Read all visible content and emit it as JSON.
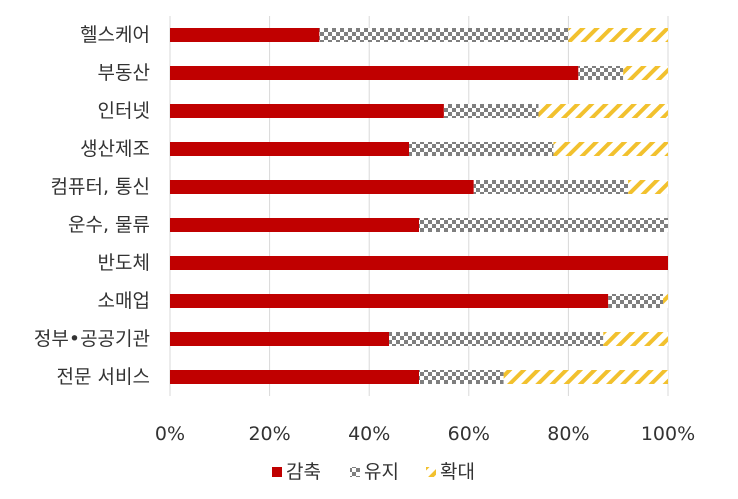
{
  "chart_data": {
    "type": "bar",
    "orientation": "horizontal",
    "stacked": true,
    "categories": [
      "헬스케어",
      "부동산",
      "인터넷",
      "생산제조",
      "컴퓨터, 통신",
      "운수, 물류",
      "반도체",
      "소매업",
      "정부•공공기관",
      "전문 서비스"
    ],
    "series": [
      {
        "name": "감축",
        "values": [
          30,
          82,
          55,
          48,
          61,
          50,
          100,
          88,
          44,
          50
        ],
        "pattern": "solid",
        "color": "#c00000"
      },
      {
        "name": "유지",
        "values": [
          50,
          9,
          19,
          29,
          31,
          50,
          0,
          11,
          43,
          17
        ],
        "pattern": "checker",
        "color": "#808080"
      },
      {
        "name": "확대",
        "values": [
          20,
          9,
          26,
          23,
          8,
          0,
          0,
          1,
          13,
          33
        ],
        "pattern": "diagonal",
        "color": "#f2c12e"
      }
    ],
    "x_ticks": [
      "0%",
      "20%",
      "40%",
      "60%",
      "80%",
      "100%"
    ],
    "xlim": [
      0,
      100
    ],
    "grid": true,
    "legend_position": "bottom",
    "title": "",
    "xlabel": "",
    "ylabel": ""
  }
}
